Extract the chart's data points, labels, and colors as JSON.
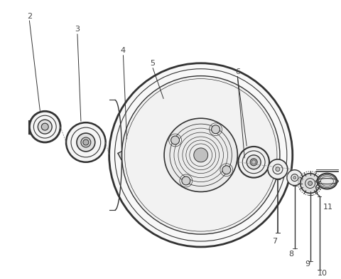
{
  "background_color": "#ffffff",
  "line_color": "#333333",
  "label_color": "#444444",
  "fig_width": 4.8,
  "fig_height": 3.92,
  "dpi": 100
}
